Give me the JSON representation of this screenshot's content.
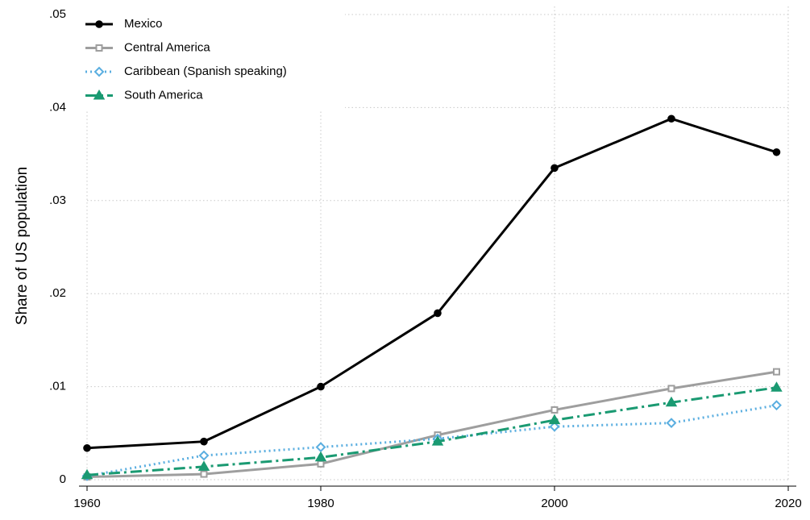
{
  "chart_data": {
    "type": "line",
    "y_label": "Share of US population",
    "x": [
      1960,
      1970,
      1980,
      1990,
      2000,
      2010,
      2019
    ],
    "series": [
      {
        "name": "Mexico",
        "color": "#000000",
        "style": "solid",
        "marker": "circle",
        "values": [
          0.0034,
          0.0041,
          0.01,
          0.0179,
          0.0335,
          0.0388,
          0.0352
        ]
      },
      {
        "name": "Central America",
        "color": "#9e9e9e",
        "style": "solid",
        "marker": "square",
        "values": [
          0.0003,
          0.0006,
          0.0017,
          0.0048,
          0.0075,
          0.0098,
          0.0116
        ]
      },
      {
        "name": "Caribbean (Spanish speaking)",
        "color": "#5aaee0",
        "style": "dotted",
        "marker": "diamond",
        "values": [
          0.0004,
          0.0026,
          0.0035,
          0.0044,
          0.0057,
          0.0061,
          0.008
        ]
      },
      {
        "name": "South America",
        "color": "#1a9a72",
        "style": "dashdot",
        "marker": "triangle",
        "values": [
          0.0005,
          0.0014,
          0.0024,
          0.0041,
          0.0064,
          0.0083,
          0.0099
        ]
      }
    ],
    "xlim": [
      1960,
      2020
    ],
    "xticks": [
      1960,
      1980,
      2000,
      2020
    ],
    "ylim": [
      0,
      0.05
    ],
    "yticks": [
      0,
      {
        "value": 0.01,
        "label": ".01"
      },
      {
        "value": 0.02,
        "label": ".02"
      },
      {
        "value": 0.03,
        "label": ".03"
      },
      {
        "value": 0.04,
        "label": ".04"
      },
      {
        "value": 0.05,
        "label": ".05"
      }
    ],
    "grid": true,
    "legend": "top-left"
  }
}
